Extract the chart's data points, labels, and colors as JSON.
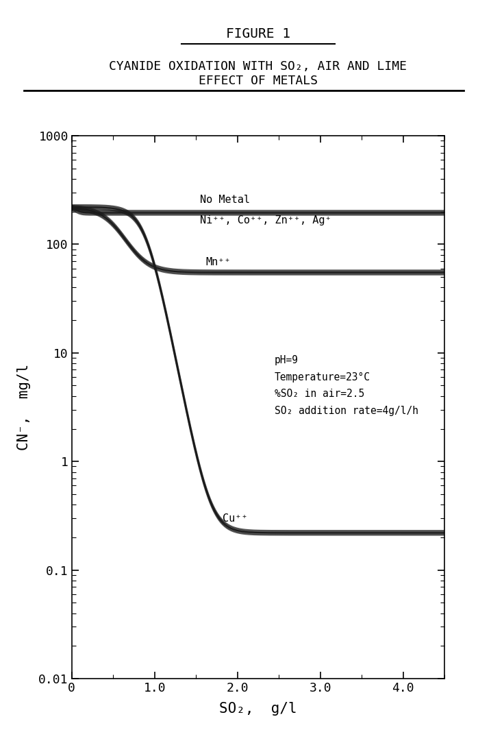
{
  "figure_title": "FIGURE 1",
  "subtitle_line1": "CYANIDE OXIDATION WITH SO₂, AIR AND LIME",
  "subtitle_line2": "EFFECT OF METALS",
  "xlabel": "SO₂,  g/l",
  "ylabel": "CN⁻,  mg/l",
  "xlim": [
    0,
    4.5
  ],
  "ylim": [
    0.01,
    1000
  ],
  "xticks": [
    0,
    1.0,
    2.0,
    3.0,
    4.0
  ],
  "xtick_labels": [
    "0",
    "1.0",
    "2.0",
    "3.0",
    "4.0"
  ],
  "annotation_no_metal": "No Metal",
  "annotation_ni": "Ni⁺⁺, Co⁺⁺, Zn⁺⁺, Ag⁺",
  "annotation_mn": "Mn⁺⁺",
  "annotation_cu": "Cu⁺⁺",
  "line_color": "#1a1a1a",
  "background_color": "#ffffff",
  "conditions": "pH=9\nTemperature=23°C\n%SO₂ in air=2.5\nSO₂ addition rate=4g/l/h"
}
